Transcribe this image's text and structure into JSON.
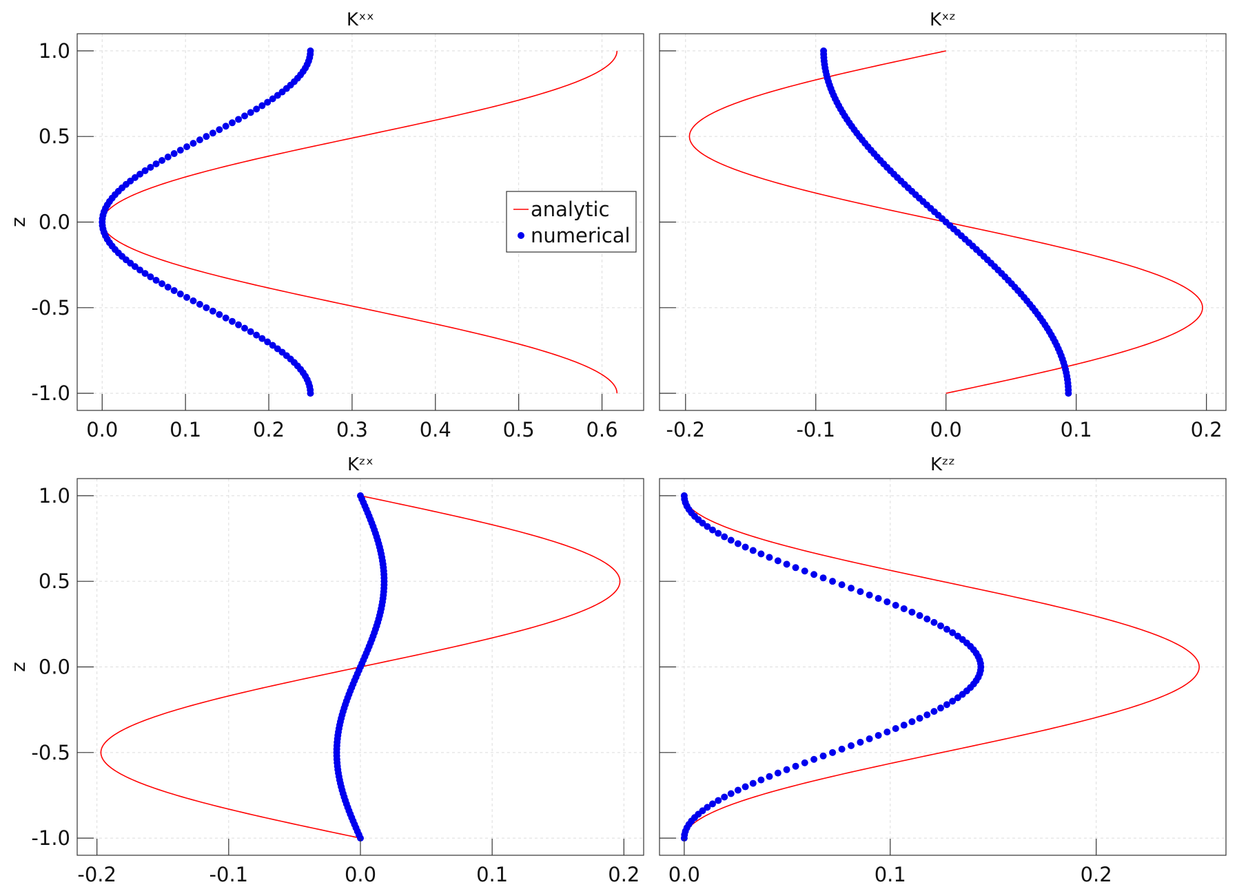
{
  "chart_data": [
    {
      "type": "line",
      "title": "Kˣˣ",
      "xlabel": "",
      "ylabel": "z",
      "xlim": [
        -0.03,
        0.65
      ],
      "ylim": [
        -1.1,
        1.1
      ],
      "xticks": [
        0.0,
        0.1,
        0.2,
        0.3,
        0.4,
        0.5,
        0.6
      ],
      "xtick_labels": [
        "0.0",
        "0.1",
        "0.2",
        "0.3",
        "0.4",
        "0.5",
        "0.6"
      ],
      "yticks": [
        -1.0,
        -0.5,
        0.0,
        0.5,
        1.0
      ],
      "ytick_labels": [
        "-1.0",
        "-0.5",
        "0.0",
        "0.5",
        "1.0"
      ],
      "grid": true,
      "legend": {
        "position": "center-right",
        "entries": [
          "analytic",
          "numerical"
        ]
      },
      "series": [
        {
          "name": "analytic",
          "style": "line",
          "color": "#ff0000",
          "function": "0.618*sin^2(pi*z/2)",
          "z_range": [
            -1,
            1
          ]
        },
        {
          "name": "numerical",
          "style": "dots",
          "color": "#0000ee",
          "function": "0.25*sin^2(pi*z/2)",
          "z_range": [
            -1,
            1
          ]
        }
      ]
    },
    {
      "type": "line",
      "title": "Kˣᶻ",
      "xlabel": "",
      "ylabel": "",
      "xlim": [
        -0.22,
        0.215
      ],
      "ylim": [
        -1.1,
        1.1
      ],
      "xticks": [
        -0.2,
        -0.1,
        0.0,
        0.1,
        0.2
      ],
      "xtick_labels": [
        "-0.2",
        "-0.1",
        "0.0",
        "0.1",
        "0.2"
      ],
      "yticks": [
        -1.0,
        -0.5,
        0.0,
        0.5,
        1.0
      ],
      "ytick_labels": [],
      "grid": true,
      "series": [
        {
          "name": "analytic",
          "style": "line",
          "color": "#ff0000",
          "function": "-0.197*sin(pi*z)",
          "z_range": [
            -1,
            1
          ]
        },
        {
          "name": "numerical",
          "style": "dots",
          "color": "#0000ee",
          "function": "-0.094*sin(pi*z/2)",
          "z_range": [
            -1,
            1
          ]
        }
      ]
    },
    {
      "type": "line",
      "title": "Kᶻˣ",
      "xlabel": "",
      "ylabel": "z",
      "xlim": [
        -0.215,
        0.215
      ],
      "ylim": [
        -1.1,
        1.1
      ],
      "xticks": [
        -0.2,
        -0.1,
        0.0,
        0.1,
        0.2
      ],
      "xtick_labels": [
        "-0.2",
        "-0.1",
        "0.0",
        "0.1",
        "0.2"
      ],
      "yticks": [
        -1.0,
        -0.5,
        0.0,
        0.5,
        1.0
      ],
      "ytick_labels": [
        "-1.0",
        "-0.5",
        "0.0",
        "0.5",
        "1.0"
      ],
      "grid": true,
      "series": [
        {
          "name": "analytic",
          "style": "line",
          "color": "#ff0000",
          "function": "0.197*sin(pi*z)",
          "z_range": [
            -1,
            1
          ]
        },
        {
          "name": "numerical",
          "style": "dots",
          "color": "#0000ee",
          "function": "0.018*sin(pi*z)",
          "z_range": [
            -1,
            1
          ]
        }
      ]
    },
    {
      "type": "line",
      "title": "Kᶻᶻ",
      "xlabel": "",
      "ylabel": "",
      "xlim": [
        -0.012,
        0.263
      ],
      "ylim": [
        -1.1,
        1.1
      ],
      "xticks": [
        0.0,
        0.1,
        0.2
      ],
      "xtick_labels": [
        "0.0",
        "0.1",
        "0.2"
      ],
      "yticks": [
        -1.0,
        -0.5,
        0.0,
        0.5,
        1.0
      ],
      "ytick_labels": [],
      "grid": true,
      "series": [
        {
          "name": "analytic",
          "style": "line",
          "color": "#ff0000",
          "function": "0.25*cos^2(pi*z/2)",
          "z_range": [
            -1,
            1
          ]
        },
        {
          "name": "numerical",
          "style": "dots",
          "color": "#0000ee",
          "function": "0.144*cos^2(pi*z/2)",
          "z_range": [
            -1,
            1
          ]
        }
      ]
    }
  ]
}
